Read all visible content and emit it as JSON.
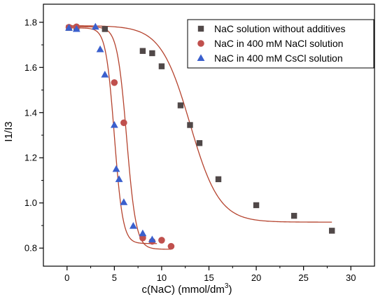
{
  "chart_data": {
    "type": "scatter",
    "title": "",
    "xlabel_main": "c(NaC) (mmol/dm",
    "xlabel_sup": "3",
    "xlabel_end": ")",
    "ylabel": "I1/I3",
    "xlim": [
      -2.5,
      32.5
    ],
    "ylim": [
      0.72,
      1.88
    ],
    "x_ticks": [
      0,
      5,
      10,
      15,
      20,
      25,
      30
    ],
    "x_tick_labels": [
      "0",
      "5",
      "10",
      "15",
      "20",
      "25",
      "30"
    ],
    "y_ticks": [
      0.8,
      1.0,
      1.2,
      1.4,
      1.6,
      1.8
    ],
    "y_tick_labels": [
      "0.8",
      "1.0",
      "1.2",
      "1.4",
      "1.6",
      "1.8"
    ],
    "grid": false,
    "legend_position": "top-right",
    "fit_color": "#b5432e",
    "series": [
      {
        "name": "NaC solution without additives",
        "marker": "square",
        "color": "#504848",
        "x": [
          0.2,
          1.0,
          4.0,
          8.0,
          9.0,
          10.0,
          12.0,
          13.0,
          14.0,
          16.0,
          20.0,
          24.0,
          28.0
        ],
        "y": [
          1.775,
          1.775,
          1.77,
          1.673,
          1.663,
          1.605,
          1.432,
          1.345,
          1.265,
          1.105,
          0.99,
          0.943,
          0.877
        ],
        "fit": {
          "top": 1.785,
          "bottom": 0.915,
          "x0": 13.0,
          "dx": 1.55,
          "x_from": 0.0,
          "x_to": 28.0
        }
      },
      {
        "name": "NaC in 400 mM NaCl solution",
        "marker": "circle",
        "color": "#c0504d",
        "x": [
          0.2,
          1.0,
          5.0,
          6.0,
          8.0,
          9.0,
          10.0,
          11.0
        ],
        "y": [
          1.778,
          1.78,
          1.533,
          1.355,
          0.845,
          0.83,
          0.835,
          0.808
        ],
        "fit": {
          "top": 1.78,
          "bottom": 0.795,
          "x0": 6.3,
          "dx": 0.5,
          "x_from": 0.0,
          "x_to": 11.0
        }
      },
      {
        "name": "NaC in 400 mM CsCl solution",
        "marker": "triangle",
        "color": "#3a5fcd",
        "x": [
          0.2,
          1.0,
          3.0,
          3.5,
          4.0,
          5.0,
          5.2,
          5.5,
          6.0,
          7.0,
          8.0,
          9.0
        ],
        "y": [
          1.775,
          1.77,
          1.78,
          1.68,
          1.568,
          1.345,
          1.15,
          1.105,
          1.003,
          0.898,
          0.865,
          0.838
        ],
        "fit": {
          "top": 1.775,
          "bottom": 0.82,
          "x0": 5.0,
          "dx": 0.45,
          "x_from": 0.0,
          "x_to": 9.5
        }
      }
    ]
  }
}
